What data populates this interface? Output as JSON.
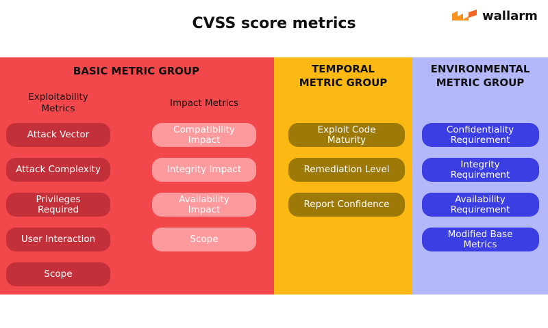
{
  "header": {
    "title": "CVSS score metrics",
    "logo": "wallarm"
  },
  "groups": [
    {
      "title": "BASIC METRIC GROUP",
      "columns": [
        {
          "heading": "Exploitability Metrics",
          "items": [
            "Attack Vector",
            "Attack Complexity",
            "Privileges Required",
            "User Interaction",
            "Scope"
          ]
        },
        {
          "heading": "Impact Metrics",
          "items": [
            "Compatibility Impact",
            "Integrity Impact",
            "Availability Impact",
            "Scope"
          ]
        }
      ]
    },
    {
      "title": "TEMPORAL METRIC GROUP",
      "columns": [
        {
          "items": [
            "Exploit Code Maturity",
            "Remediation Level",
            "Report Confidence"
          ]
        }
      ]
    },
    {
      "title": "ENVIRONMENTAL METRIC GROUP",
      "columns": [
        {
          "items": [
            "Confidentiality Requirement",
            "Integrity Requirement",
            "Availability Requirement",
            "Modified Base Metrics"
          ]
        }
      ]
    }
  ]
}
